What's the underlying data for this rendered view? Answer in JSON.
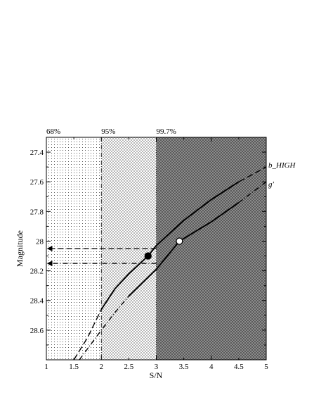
{
  "chart_data": {
    "type": "line",
    "xlabel": "S/N",
    "ylabel": "Magnitude",
    "xlim": [
      1,
      5
    ],
    "ylim": [
      28.8,
      27.3
    ],
    "y_inverted": true,
    "grid": false,
    "x_ticks": [
      1,
      1.5,
      2,
      2.5,
      3,
      3.5,
      4,
      4.5,
      5
    ],
    "x_tick_labels": [
      "1",
      "1.5",
      "2",
      "2.5",
      "3",
      "3.5",
      "4",
      "4.5",
      "5"
    ],
    "y_ticks": [
      27.4,
      27.6,
      27.8,
      28,
      28.2,
      28.4,
      28.6
    ],
    "y_tick_labels": [
      "27.4",
      "27.6",
      "27.8",
      "28",
      "28.2",
      "28.4",
      "28.6"
    ],
    "confidence_regions": [
      {
        "label": "68%",
        "x_from": 1,
        "x_to": 2,
        "shade": "light"
      },
      {
        "label": "95%",
        "x_from": 2,
        "x_to": 3,
        "shade": "medium"
      },
      {
        "label": "99.7%",
        "x_from": 3,
        "x_to": 5,
        "shade": "dark"
      }
    ],
    "series": [
      {
        "name": "b_HIGH",
        "x": [
          1.5,
          1.75,
          2.0,
          2.25,
          2.5,
          2.85,
          3.0,
          3.5,
          4.0,
          4.5,
          5.0
        ],
        "y": [
          28.8,
          28.65,
          28.46,
          28.32,
          28.22,
          28.1,
          28.03,
          27.86,
          27.72,
          27.6,
          27.5
        ],
        "points": [
          {
            "x": 2.85,
            "y": 28.1,
            "fill": "black"
          }
        ]
      },
      {
        "name": "g'",
        "x": [
          1.6,
          2.0,
          2.25,
          2.5,
          3.0,
          3.42,
          4.0,
          4.5,
          5.0
        ],
        "y": [
          28.8,
          28.6,
          28.48,
          28.37,
          28.19,
          28.0,
          27.87,
          27.74,
          27.6
        ],
        "points": [
          {
            "x": 3.42,
            "y": 28.0,
            "fill": "white"
          }
        ]
      }
    ],
    "arrows": [
      {
        "from_x": 3.0,
        "to_x": 1.0,
        "y": 28.05,
        "style": "dashed"
      },
      {
        "from_x": 3.0,
        "to_x": 1.0,
        "y": 28.15,
        "style": "dash-dot"
      }
    ],
    "colors": {
      "line": "#000000",
      "light_dots": "#555555",
      "dark_bg": "#666666"
    }
  }
}
